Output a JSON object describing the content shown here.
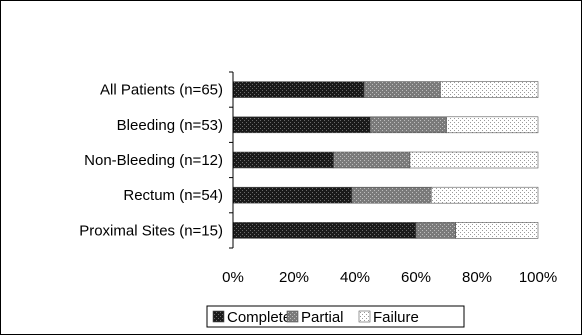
{
  "chart_data": {
    "type": "bar",
    "orientation": "horizontal",
    "stacked": "100%",
    "title": "",
    "xlabel": "",
    "ylabel": "",
    "categories": [
      "All Patients (n=65)",
      "Bleeding (n=53)",
      "Non-Bleeding (n=12)",
      "Rectum (n=54)",
      "Proximal Sites (n=15)"
    ],
    "series": [
      {
        "name": "Complete",
        "values": [
          43,
          45,
          33,
          39,
          60
        ],
        "color": "#1a1a1a"
      },
      {
        "name": "Partial",
        "values": [
          25,
          25,
          25,
          26,
          13
        ],
        "color": "#8c8c8c"
      },
      {
        "name": "Failure",
        "values": [
          32,
          30,
          42,
          35,
          27
        ],
        "color": "#f2f2f2"
      }
    ],
    "xlim": [
      0,
      100
    ],
    "xticks": [
      "0%",
      "20%",
      "40%",
      "60%",
      "80%",
      "100%"
    ],
    "grid": false,
    "legend_position": "bottom"
  }
}
